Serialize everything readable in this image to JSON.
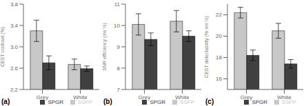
{
  "chart_data": [
    {
      "type": "bar",
      "y_label": "CEST contrast (%)",
      "annotation": "(a)",
      "categories": [
        "Grey",
        "White"
      ],
      "series": [
        {
          "name": "SSFP",
          "color": "#c8c8c8",
          "values": [
            3.3,
            2.67
          ],
          "errors": [
            0.2,
            0.1
          ]
        },
        {
          "name": "SPGR",
          "color": "#404040",
          "values": [
            2.7,
            2.59
          ],
          "errors": [
            0.13,
            0.05
          ]
        }
      ],
      "ylim": [
        2.2,
        3.8
      ],
      "yticks": [
        2.2,
        2.6,
        {
          "value": 3.0,
          "label": "3.0"
        },
        3.4,
        3.8
      ],
      "legend": "lower right",
      "grid": false
    },
    {
      "type": "bar",
      "y_label": "SNR efficiency (ms⁻½)",
      "annotation": "(b)",
      "categories": [
        "Grey",
        "White"
      ],
      "series": [
        {
          "name": "SSFP",
          "color": "#c8c8c8",
          "values": [
            10.05,
            10.2
          ],
          "errors": [
            0.5,
            0.5
          ]
        },
        {
          "name": "SPGR",
          "color": "#404040",
          "values": [
            9.35,
            9.5
          ],
          "errors": [
            0.3,
            0.25
          ]
        }
      ],
      "ylim": [
        7,
        11
      ],
      "yticks": [
        7,
        8,
        9,
        10,
        11
      ],
      "legend": "lower right",
      "grid": false
    },
    {
      "type": "bar",
      "y_label": "CEST detectability (%·ms⁻½)",
      "annotation": "(c)",
      "categories": [
        "Grey",
        "White"
      ],
      "series": [
        {
          "name": "SSFP",
          "color": "#c8c8c8",
          "values": [
            22.2,
            20.5
          ],
          "errors": [
            0.5,
            0.7
          ]
        },
        {
          "name": "SPGR",
          "color": "#404040",
          "values": [
            18.2,
            17.4
          ],
          "errors": [
            0.5,
            0.4
          ]
        }
      ],
      "ylim": [
        15,
        23
      ],
      "yticks": [
        16,
        18,
        20,
        22
      ],
      "legend": "lower right",
      "grid": false
    }
  ]
}
